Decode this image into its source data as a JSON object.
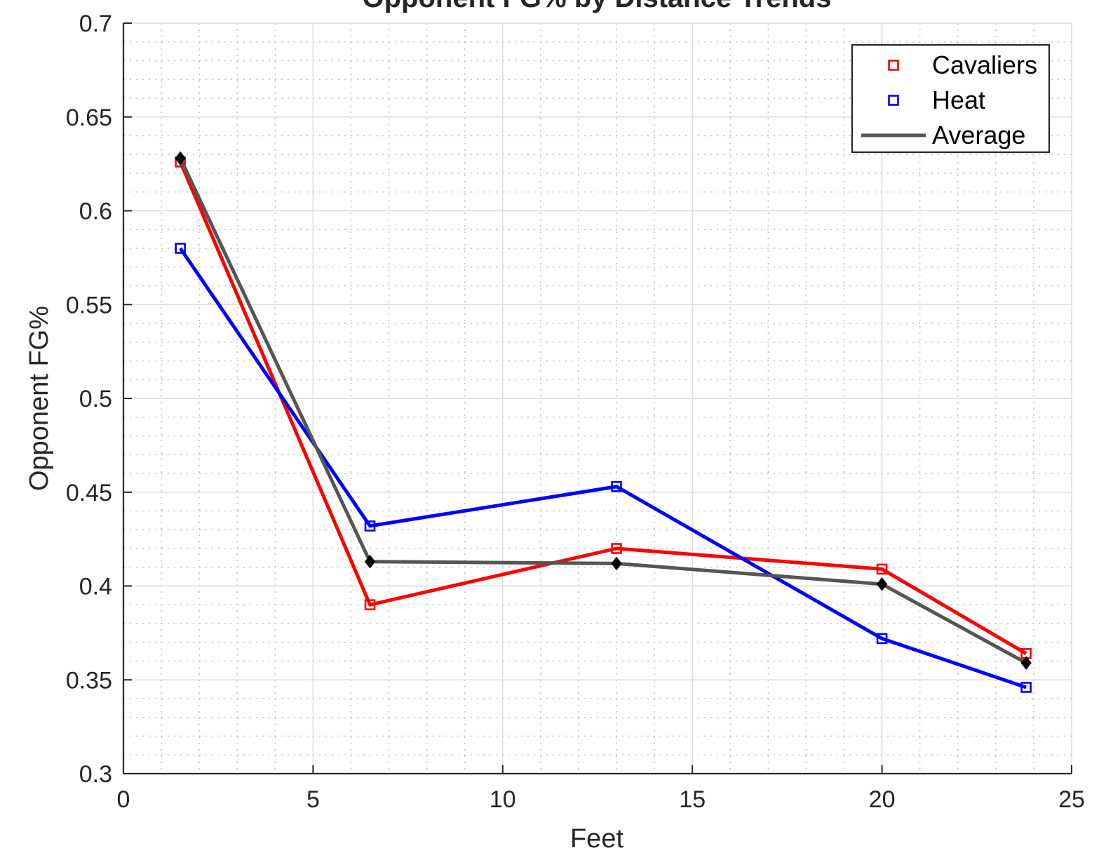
{
  "chart_data": {
    "type": "line",
    "title": "Opponent FG% by Distance Trends",
    "xlabel": "Feet",
    "ylabel": "Opponent FG%",
    "xlim": [
      0,
      25
    ],
    "ylim": [
      0.3,
      0.7
    ],
    "xticks": [
      0,
      5,
      10,
      15,
      20,
      25
    ],
    "xtick_labels": [
      "0",
      "5",
      "10",
      "15",
      "20",
      "25"
    ],
    "yticks": [
      0.3,
      0.35,
      0.4,
      0.45,
      0.5,
      0.55,
      0.6,
      0.65,
      0.7
    ],
    "ytick_labels": [
      "0.3",
      "0.35",
      "0.4",
      "0.45",
      "0.5",
      "0.55",
      "0.6",
      "0.65",
      "0.7"
    ],
    "grid": true,
    "minor_grid": true,
    "legend_position": "top-right",
    "x": [
      1.5,
      6.5,
      13,
      20,
      23.8
    ],
    "series": [
      {
        "name": "Cavaliers",
        "values": [
          0.626,
          0.39,
          0.42,
          0.409,
          0.364
        ],
        "color": "#ff0000",
        "marker": "square"
      },
      {
        "name": "Heat",
        "values": [
          0.58,
          0.432,
          0.453,
          0.372,
          0.346
        ],
        "color": "#0000ff",
        "marker": "square"
      },
      {
        "name": "Average",
        "values": [
          0.628,
          0.413,
          0.412,
          0.401,
          0.359
        ],
        "color": "#555555",
        "marker": "diamond",
        "marker_color": "#000000"
      }
    ]
  }
}
